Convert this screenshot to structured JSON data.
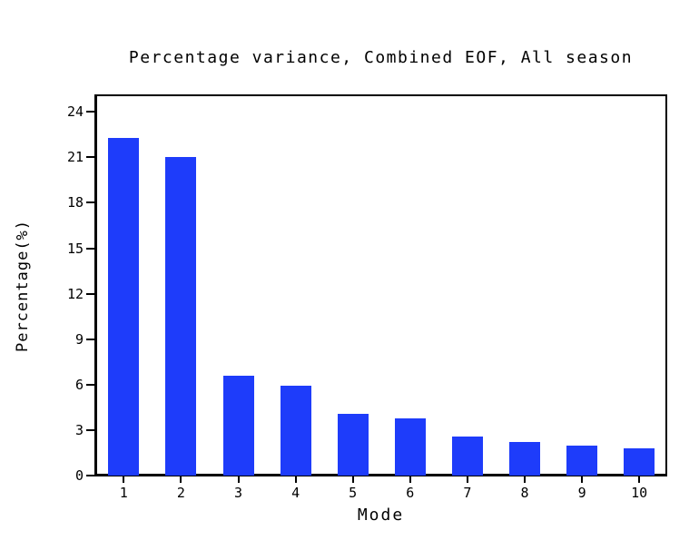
{
  "chart_data": {
    "type": "bar",
    "title": "Percentage variance, Combined EOF, All season",
    "xlabel": "Mode",
    "ylabel": "Percentage(%)",
    "categories": [
      "1",
      "2",
      "3",
      "4",
      "5",
      "6",
      "7",
      "8",
      "9",
      "10"
    ],
    "values": [
      22.3,
      21.0,
      6.6,
      5.9,
      4.1,
      3.8,
      2.6,
      2.2,
      2.0,
      1.8
    ],
    "yticks": [
      0,
      3,
      6,
      9,
      12,
      15,
      18,
      21,
      24
    ],
    "ylim": [
      0,
      25.2
    ],
    "grid": false,
    "legend": null,
    "colors": {
      "bar": "#1e3cfa",
      "axis": "#000000",
      "text": "#000000",
      "background": "#ffffff"
    }
  }
}
